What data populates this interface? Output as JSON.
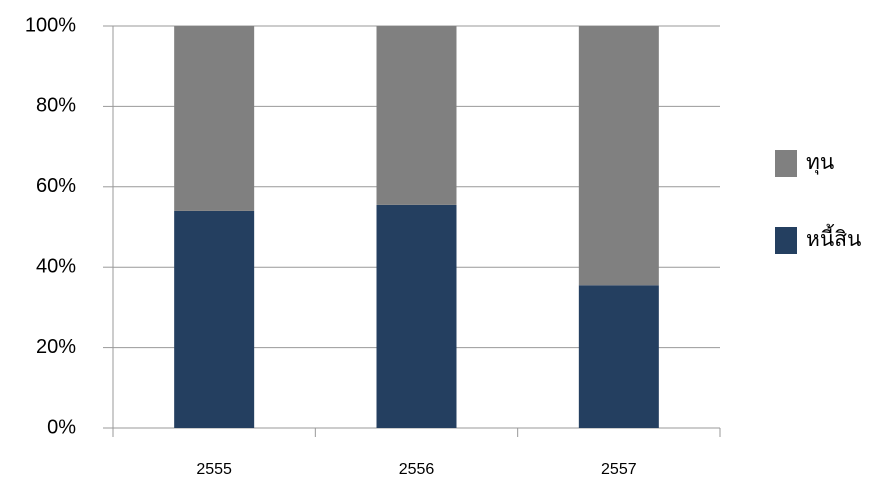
{
  "chart_data": {
    "type": "stacked_bar",
    "categories": [
      "2555",
      "2556",
      "2557"
    ],
    "series": [
      {
        "name": "หนี้สิน",
        "color": "#243f60",
        "values": [
          54,
          55.5,
          35.5
        ]
      },
      {
        "name": "ทุน",
        "color": "#808080",
        "values": [
          46,
          44.5,
          64.5
        ]
      }
    ],
    "ylim": [
      0,
      100
    ],
    "yticks": [
      {
        "value": 0,
        "label": "0%"
      },
      {
        "value": 20,
        "label": "20%"
      },
      {
        "value": 40,
        "label": "40%"
      },
      {
        "value": 60,
        "label": "60%"
      },
      {
        "value": 80,
        "label": "80%"
      },
      {
        "value": 100,
        "label": "100%"
      }
    ],
    "grid": true,
    "legend": "right"
  }
}
